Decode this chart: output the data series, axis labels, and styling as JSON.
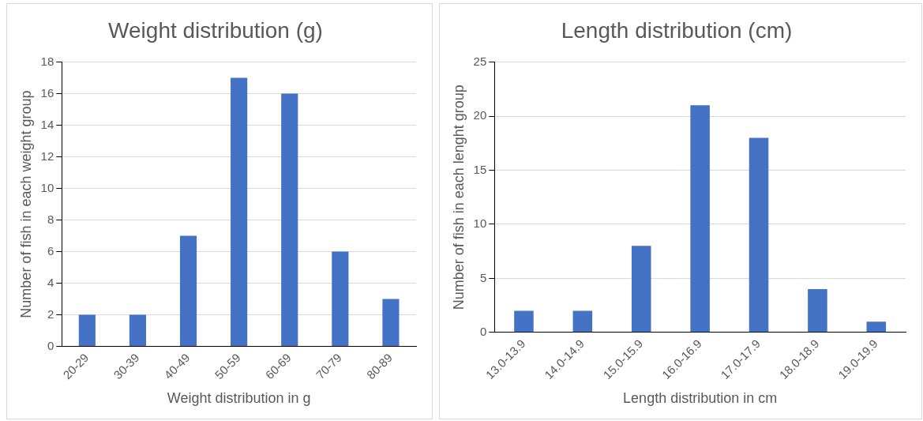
{
  "chart_data": [
    {
      "type": "bar",
      "title": "Weight distribution (g)",
      "xlabel": "Weight distribution in g",
      "ylabel": "Number of fish in each weight group",
      "categories": [
        "20-29",
        "30-39",
        "40-49",
        "50-59",
        "60-69",
        "70-79",
        "80-89"
      ],
      "values": [
        2,
        2,
        7,
        17,
        16,
        6,
        3
      ],
      "color": "#4472c4",
      "ylim": [
        0,
        18
      ],
      "yticks": [
        0,
        2,
        4,
        6,
        8,
        10,
        12,
        14,
        16,
        18
      ],
      "grid": "y"
    },
    {
      "type": "bar",
      "title": "Length distribution (cm)",
      "xlabel": "Length distribution in cm",
      "ylabel": "Number of fish in each lenght group",
      "categories": [
        "13.0-13.9",
        "14.0-14.9",
        "15.0-15.9",
        "16.0-16.9",
        "17.0-17.9",
        "18.0-18.9",
        "19.0-19.9"
      ],
      "values": [
        2,
        2,
        8,
        21,
        18,
        4,
        1
      ],
      "color": "#4472c4",
      "ylim": [
        0,
        25
      ],
      "yticks": [
        0,
        5,
        10,
        15,
        20,
        25
      ],
      "grid": "y"
    }
  ]
}
